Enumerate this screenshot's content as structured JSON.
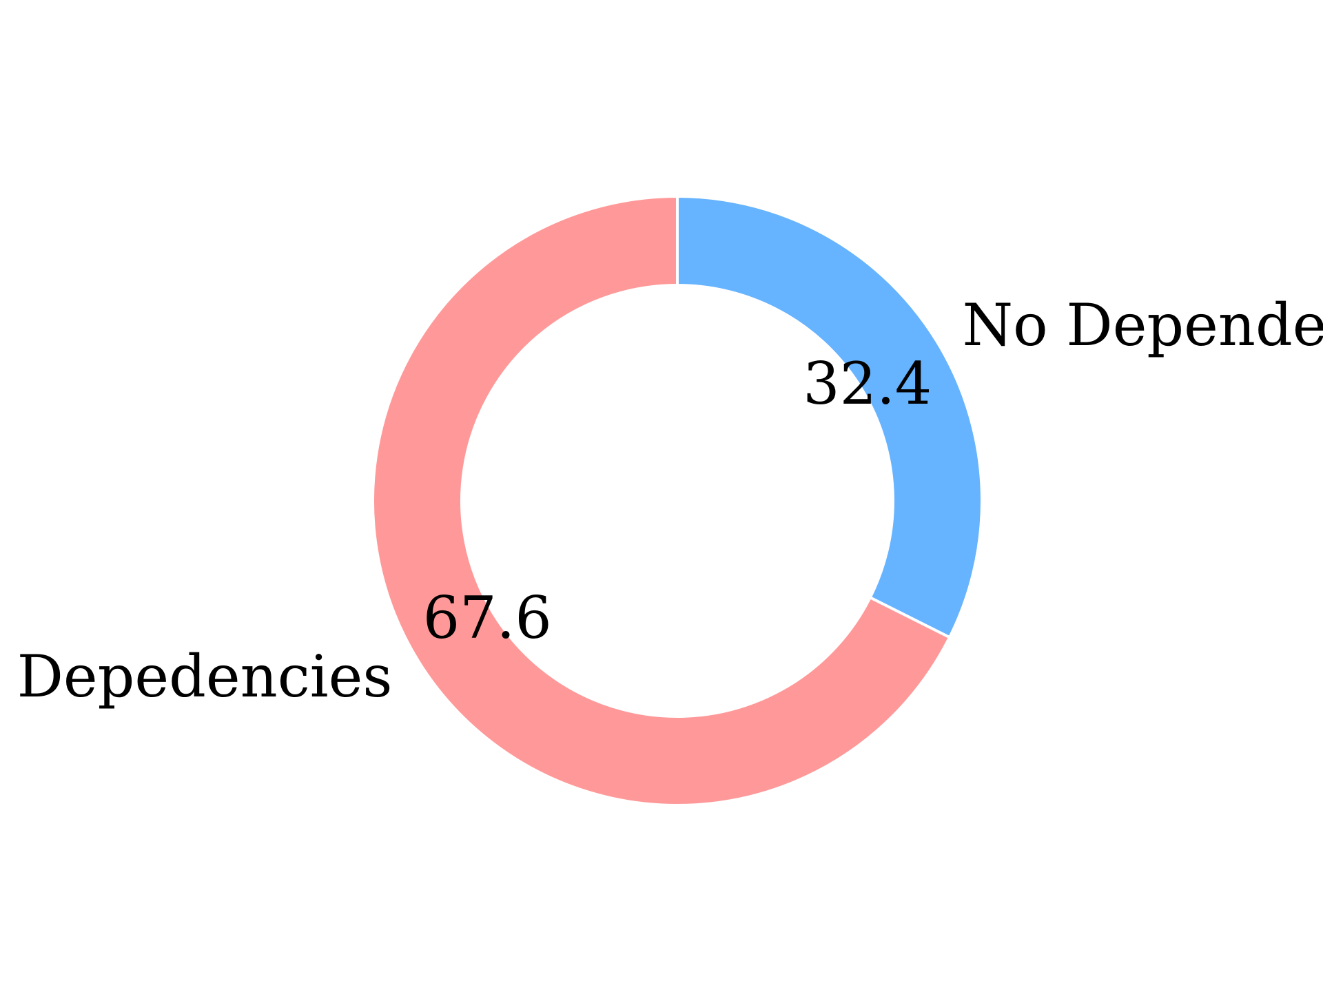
{
  "chart_data": {
    "type": "pie",
    "variant": "donut",
    "categories": [
      "No Dependencies",
      "Having Depedencies"
    ],
    "values": [
      32.4,
      67.6
    ],
    "value_labels": [
      "32.4",
      "67.6"
    ],
    "colors": [
      "#66b3ff",
      "#ff9999"
    ],
    "start_angle_deg": 90,
    "direction": "clockwise",
    "slice_edge_color": "#ffffff",
    "legend": "none",
    "title": ""
  }
}
